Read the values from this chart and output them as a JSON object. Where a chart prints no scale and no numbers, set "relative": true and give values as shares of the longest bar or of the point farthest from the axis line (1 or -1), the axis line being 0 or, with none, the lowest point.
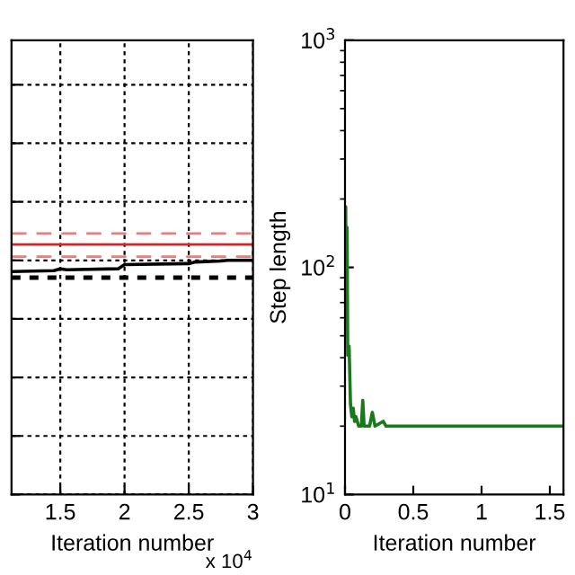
{
  "chart_data": [
    {
      "type": "line",
      "relative": true,
      "xlabel": "Iteration number",
      "annotations": [
        "x 10$^{4}$"
      ],
      "xlim": [
        1.12,
        3
      ],
      "xticks": [
        1.5,
        2,
        2.5,
        3
      ],
      "grid": true,
      "tick_labels": "x",
      "line_style": "solid",
      "marker": "none",
      "series": [
        {
          "color": "#000000",
          "x": [
            1.12,
            1.45,
            1.5,
            1.55,
            1.95,
            2.0,
            2.5,
            2.55,
            2.75,
            2.8,
            3.0
          ],
          "values": [
            0.952,
            0.956,
            0.964,
            0.96,
            0.964,
            0.982,
            0.986,
            0.993,
            0.997,
            1,
            1
          ]
        }
      ],
      "ref_lines": [
        {
          "axis": "y",
          "value": 1.115,
          "color": "#e08080",
          "line_style": "dashed"
        },
        {
          "axis": "y",
          "value": 1.068,
          "color": "#e02020",
          "line_style": "solid"
        },
        {
          "axis": "y",
          "value": 1.016,
          "color": "#e08080",
          "line_style": "dashed"
        },
        {
          "axis": "y",
          "value": 0.926,
          "color": "#000000",
          "line_style": "dotted"
        }
      ]
    },
    {
      "type": "line",
      "xlabel": "Iteration number",
      "ylabel": "Step length",
      "log": "y",
      "xlim": [
        0,
        1.6
      ],
      "xticks": [
        0,
        0.5,
        1,
        1.5
      ],
      "ylim": [
        10,
        1000
      ],
      "yticks": [
        {
          "value": 10,
          "label": "10$^{1}$"
        },
        {
          "value": 100,
          "label": "10$^{2}$"
        },
        {
          "value": 1000,
          "label": "10$^{3}$"
        }
      ],
      "grid": false,
      "line_style": "solid",
      "marker": "none",
      "series": [
        {
          "color": "#1a7a1a",
          "x": [
            0,
            0.005,
            0.01,
            0.015,
            0.02,
            0.03,
            0.04,
            0.05,
            0.06,
            0.07,
            0.08,
            0.1,
            0.12,
            0.13,
            0.14,
            0.18,
            0.2,
            0.22,
            0.28,
            0.3,
            1.6
          ],
          "values": [
            80,
            185,
            60,
            150,
            41,
            45,
            25,
            22,
            24,
            21,
            22,
            20,
            20,
            26,
            20,
            20,
            23,
            20,
            21,
            20,
            20
          ]
        }
      ]
    }
  ]
}
